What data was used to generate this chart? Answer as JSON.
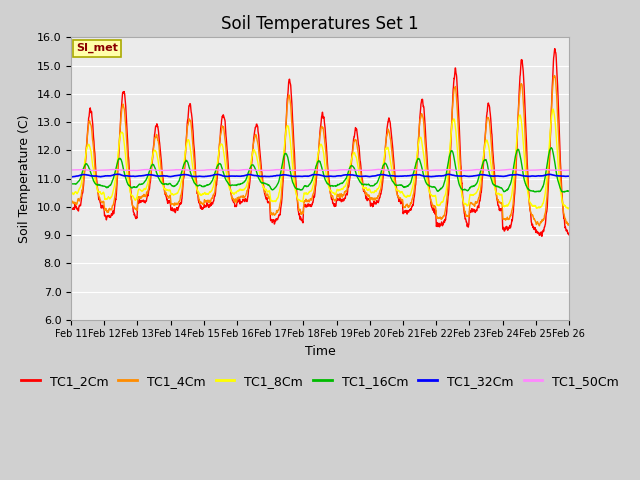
{
  "title": "Soil Temperatures Set 1",
  "xlabel": "Time",
  "ylabel": "Soil Temperature (C)",
  "ylim": [
    6.0,
    16.0
  ],
  "yticks": [
    6.0,
    7.0,
    8.0,
    9.0,
    10.0,
    11.0,
    12.0,
    13.0,
    14.0,
    15.0,
    16.0
  ],
  "xtick_labels": [
    "Feb 11",
    "Feb 12",
    "Feb 13",
    "Feb 14",
    "Feb 15",
    "Feb 16",
    "Feb 17",
    "Feb 18",
    "Feb 19",
    "Feb 20",
    "Feb 21",
    "Feb 22",
    "Feb 23",
    "Feb 24",
    "Feb 25",
    "Feb 26"
  ],
  "series_colors": [
    "#FF0000",
    "#FF8C00",
    "#FFFF00",
    "#00BB00",
    "#0000FF",
    "#FF88FF"
  ],
  "series_labels": [
    "TC1_2Cm",
    "TC1_4Cm",
    "TC1_8Cm",
    "TC1_16Cm",
    "TC1_32Cm",
    "TC1_50Cm"
  ],
  "annotation_text": "SI_met",
  "bg_color": "#EBEBEB",
  "grid_color": "#FFFFFF",
  "title_fontsize": 12,
  "axis_fontsize": 9,
  "tick_fontsize": 8,
  "legend_fontsize": 9
}
